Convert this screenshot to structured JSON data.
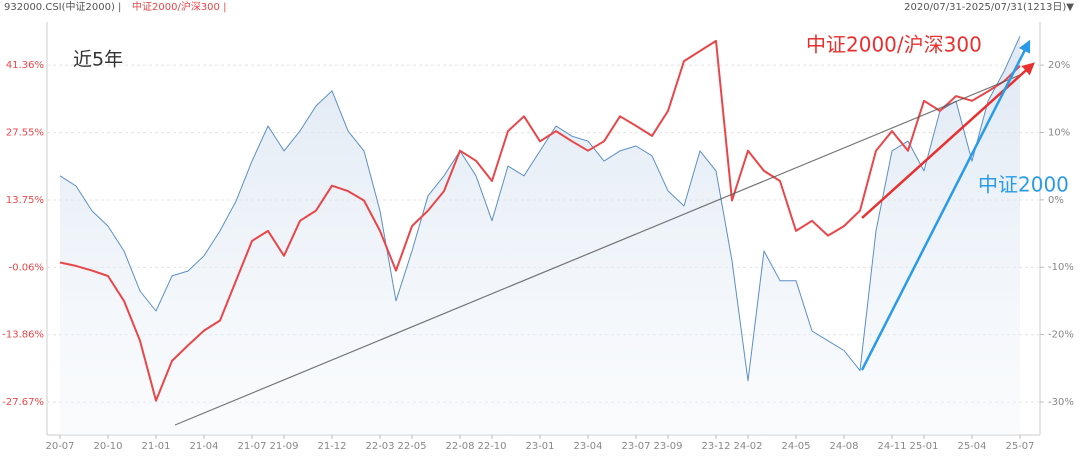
{
  "chart_data": {
    "type": "line",
    "header_code": "932000.CSI(中证2000) |",
    "header_ratio": "中证2000/沪深300 |",
    "date_range": "2020/07/31-2025/07/31(1213日)▼",
    "period_label": "近5年",
    "annotations": [
      "中证2000/沪深300",
      "中证2000"
    ],
    "categories": [
      "20-07",
      null,
      null,
      "20-10",
      null,
      null,
      "21-01",
      null,
      null,
      "21-04",
      null,
      null,
      "21-07",
      null,
      "21-09",
      null,
      null,
      "21-12",
      null,
      null,
      "22-03",
      null,
      "22-05",
      null,
      null,
      "22-08",
      null,
      "22-10",
      null,
      null,
      "23-01",
      null,
      null,
      "23-04",
      null,
      null,
      "23-07",
      null,
      "23-09",
      null,
      null,
      "23-12",
      null,
      "24-02",
      null,
      null,
      "24-05",
      null,
      null,
      "24-08",
      null,
      null,
      "24-11",
      null,
      "25-01",
      null,
      null,
      "25-04",
      null,
      null,
      "25-07"
    ],
    "series": [
      {
        "name": "中证2000",
        "color": "#5b8fc7",
        "axis": "y",
        "values": [
          18.7,
          16.6,
          11.5,
          8.4,
          3.3,
          -4.9,
          -9.0,
          -1.8,
          -0.8,
          2.3,
          7.4,
          13.5,
          21.7,
          28.9,
          23.8,
          27.9,
          33.0,
          36.1,
          27.9,
          23.8,
          11.5,
          -6.9,
          3.3,
          14.6,
          18.7,
          23.8,
          18.7,
          9.5,
          20.7,
          18.7,
          23.8,
          28.9,
          26.8,
          25.8,
          21.7,
          23.8,
          24.8,
          22.8,
          15.6,
          12.5,
          23.8,
          19.7,
          1.3,
          -23.3,
          3.3,
          -2.8,
          -2.8,
          -13.1,
          -15.1,
          -17.1,
          -21.2,
          7.4,
          23.8,
          25.8,
          19.7,
          32.0,
          34.0,
          21.7,
          34.0,
          40.1,
          47.3
        ]
      },
      {
        "name": "中证2000/沪深300",
        "color": "#e8474a",
        "axis": "y2",
        "values": [
          -9.3,
          -9.8,
          -10.5,
          -11.3,
          -15.0,
          -20.9,
          -29.8,
          -23.9,
          -21.6,
          -19.4,
          -17.9,
          -12.0,
          -6.1,
          -4.6,
          -8.3,
          -3.1,
          -1.6,
          2.1,
          1.3,
          -0.1,
          -4.6,
          -10.5,
          -3.9,
          -1.6,
          1.3,
          7.3,
          5.8,
          2.8,
          10.2,
          12.4,
          8.7,
          10.2,
          8.7,
          7.3,
          8.7,
          12.4,
          11.0,
          9.5,
          13.2,
          20.6,
          22.1,
          23.6,
          -0.1,
          7.3,
          4.3,
          2.8,
          -4.6,
          -3.1,
          -5.3,
          -3.9,
          -1.6,
          7.3,
          10.2,
          7.3,
          14.7,
          13.2,
          15.4,
          14.7,
          16.1,
          17.6,
          19.9
        ]
      }
    ],
    "ylim": [
      -34.4,
      50.2
    ],
    "yticks": [
      {
        "value": 41.36,
        "label": "41.36%"
      },
      {
        "value": 27.55,
        "label": "27.55%"
      },
      {
        "value": 13.75,
        "label": "13.75%"
      },
      {
        "value": -0.06,
        "label": "-0.06%"
      },
      {
        "value": -13.86,
        "label": "-13.86%"
      },
      {
        "value": -27.67,
        "label": "-27.67%"
      }
    ],
    "y2lim": [
      -34.9,
      26.4
    ],
    "y2ticks": [
      {
        "value": 20,
        "label": "20%"
      },
      {
        "value": 10,
        "label": "10%"
      },
      {
        "value": 0,
        "label": "0%"
      },
      {
        "value": -10,
        "label": "-10%"
      },
      {
        "value": -20,
        "label": "-20%"
      },
      {
        "value": -30,
        "label": "-30%"
      }
    ],
    "grid": true
  }
}
